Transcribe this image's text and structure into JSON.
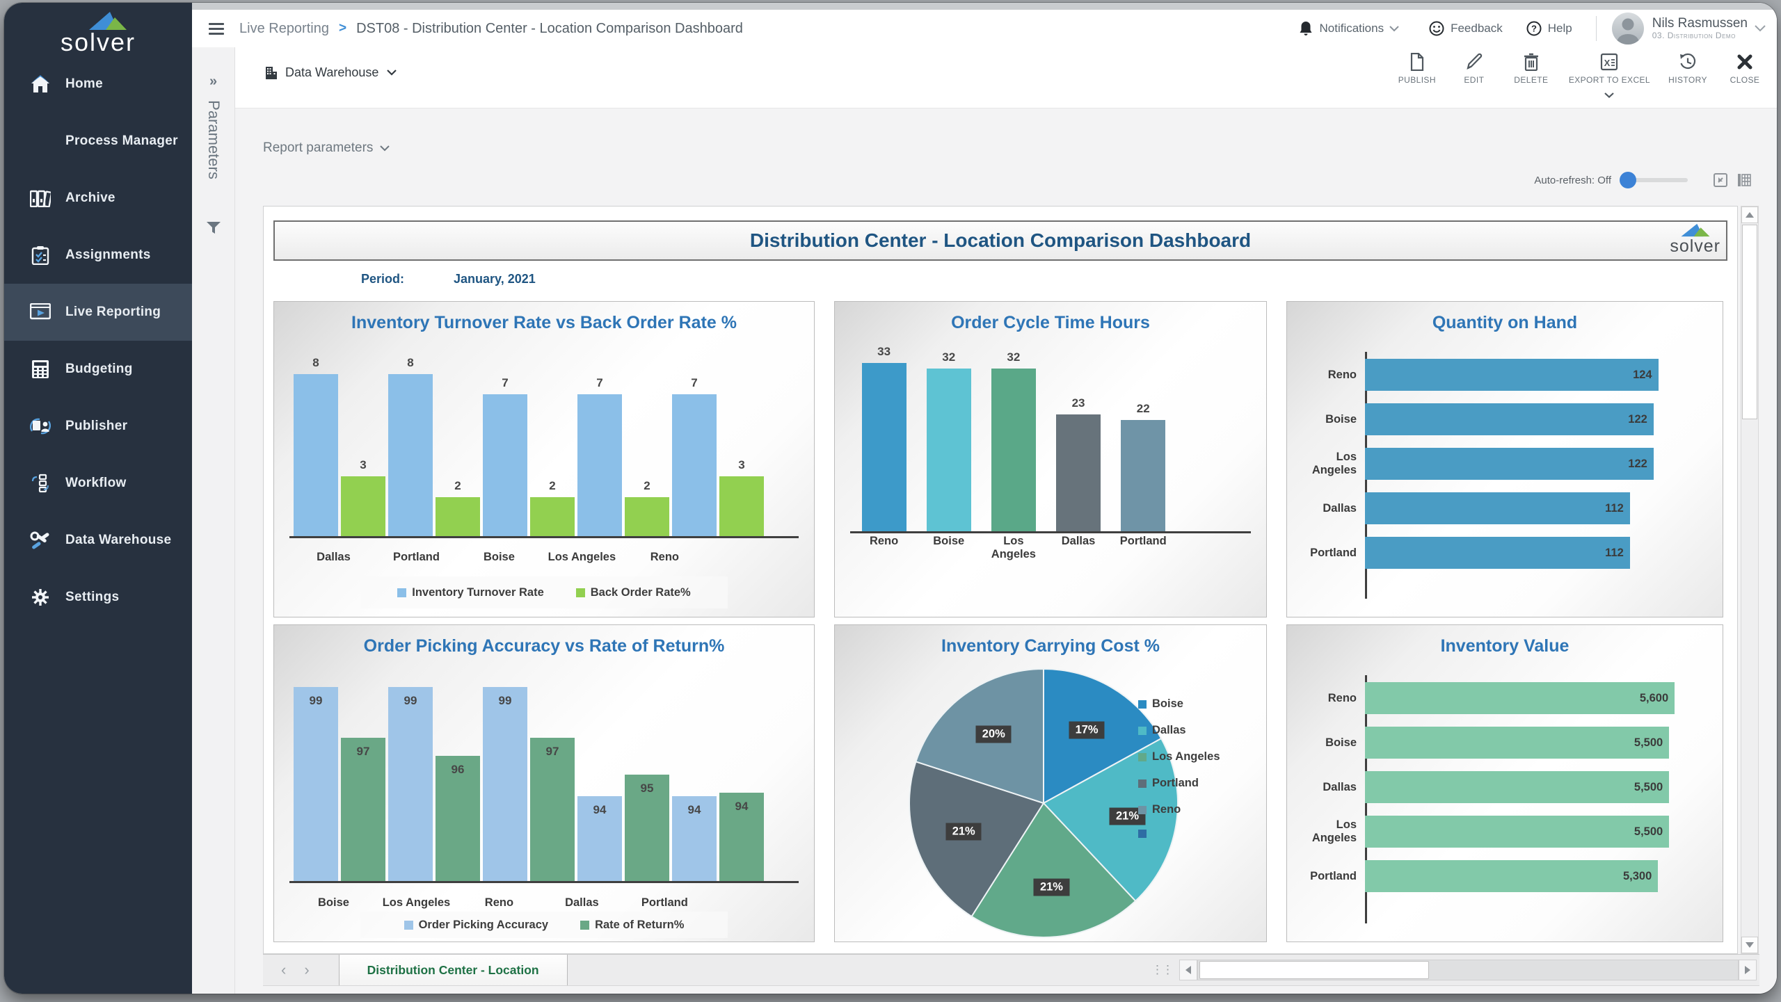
{
  "sidebar": {
    "logo_text": "solver",
    "items": [
      {
        "label": "Home",
        "active": false
      },
      {
        "label": "Process Manager",
        "active": false
      },
      {
        "label": "Archive",
        "active": false
      },
      {
        "label": "Assignments",
        "active": false
      },
      {
        "label": "Live Reporting",
        "active": true
      },
      {
        "label": "Budgeting",
        "active": false
      },
      {
        "label": "Publisher",
        "active": false
      },
      {
        "label": "Workflow",
        "active": false
      },
      {
        "label": "Data Warehouse",
        "active": false
      },
      {
        "label": "Settings",
        "active": false
      }
    ]
  },
  "params_rail": {
    "label": "Parameters",
    "expander": "»"
  },
  "header": {
    "breadcrumb_root": "Live Reporting",
    "breadcrumb_sep": ">",
    "breadcrumb_current": "DST08 - Distribution Center - Location Comparison Dashboard",
    "notifications_label": "Notifications",
    "feedback_label": "Feedback",
    "help_label": "Help",
    "user_name": "Nils Rasmussen",
    "user_context": "03. Distribution Demo"
  },
  "toolbar": {
    "source_label": "Data Warehouse",
    "buttons": [
      "PUBLISH",
      "EDIT",
      "DELETE",
      "EXPORT TO EXCEL",
      "HISTORY",
      "CLOSE"
    ]
  },
  "report_bar": {
    "report_parameters_label": "Report parameters",
    "auto_refresh_label": "Auto-refresh: Off"
  },
  "dashboard": {
    "title": "Distribution Center - Location Comparison Dashboard",
    "logo_text": "solver",
    "period_label": "Period:",
    "period_value": "January, 2021"
  },
  "sheet_tabs": {
    "active_tab": "Distribution Center - Location"
  },
  "colors": {
    "accent_blue": "#3c82d6",
    "sidebar_bg": "#27313f",
    "title_blue": "#1f5582",
    "chart_title_blue": "#2e75b6",
    "excel_tab_green": "#1e7145"
  },
  "chart_data": [
    {
      "id": "turnover_vs_backorder",
      "type": "bar",
      "title": "Inventory Turnover Rate vs Back Order Rate %",
      "categories": [
        "Dallas",
        "Portland",
        "Boise",
        "Los Angeles",
        "Reno"
      ],
      "series": [
        {
          "name": "Inventory Turnover Rate",
          "color": "#8bbfe8",
          "values": [
            8,
            8,
            7,
            7,
            7
          ],
          "ylim": [
            0,
            9
          ]
        },
        {
          "name": "Back Order Rate%",
          "color": "#92d050",
          "values": [
            3,
            2,
            2,
            2,
            3
          ],
          "ylim": [
            0,
            9
          ]
        }
      ],
      "legend": true,
      "legend_position": "bottom",
      "value_labels": "above",
      "grid": false
    },
    {
      "id": "order_cycle_time",
      "type": "bar",
      "title": "Order Cycle Time Hours",
      "categories": [
        "Reno",
        "Boise",
        "Los Angeles",
        "Dallas",
        "Portland"
      ],
      "series": [
        {
          "name": "Order Cycle Time Hours",
          "colors": [
            "#3d9ac9",
            "#5ec3d3",
            "#5aa888",
            "#67737b",
            "#6f94a7"
          ],
          "values": [
            33,
            32,
            32,
            23,
            22
          ],
          "ylim": [
            0,
            36
          ]
        }
      ],
      "legend": false,
      "value_labels": "above",
      "grid": false
    },
    {
      "id": "quantity_on_hand",
      "type": "hbar",
      "title": "Quantity on Hand",
      "categories": [
        "Reno",
        "Boise",
        "Los Angeles",
        "Dallas",
        "Portland"
      ],
      "values": [
        124,
        122,
        122,
        112,
        112
      ],
      "color": "#4a9cc4",
      "xlim": [
        0,
        130
      ],
      "value_labels": "inside-end",
      "grid": false
    },
    {
      "id": "picking_vs_returns",
      "type": "bar",
      "title": "Order Picking Accuracy vs Rate of Return%",
      "categories": [
        "Boise",
        "Los Angeles",
        "Reno",
        "Dallas",
        "Portland"
      ],
      "series": [
        {
          "name": "Order Picking Accuracy",
          "color": "#9fc5e8",
          "values": [
            99,
            99,
            99,
            94,
            94
          ],
          "ylim": [
            90,
            100
          ]
        },
        {
          "name": "Rate of Return%",
          "color": "#6aa886",
          "values": [
            97,
            96,
            97,
            95,
            94
          ],
          "ylim": [
            89,
            101
          ]
        }
      ],
      "legend": true,
      "legend_position": "bottom",
      "value_labels": "inside",
      "grid": false
    },
    {
      "id": "carrying_cost",
      "type": "pie",
      "title": "Inventory Carrying Cost %",
      "slices": [
        {
          "label": "Boise",
          "value": 17,
          "color": "#2b8bc2"
        },
        {
          "label": "Dallas",
          "value": 21,
          "color": "#4fbac6"
        },
        {
          "label": "Los Angeles",
          "value": 21,
          "color": "#61a98a"
        },
        {
          "label": "Portland",
          "value": 21,
          "color": "#5e6e79"
        },
        {
          "label": "Reno",
          "value": 20,
          "color": "#6e93a4"
        }
      ],
      "label_suffix": "%",
      "legend": true,
      "legend_position": "right",
      "legend_extra_color": "#2e6da4"
    },
    {
      "id": "inventory_value",
      "type": "hbar",
      "title": "Inventory Value",
      "categories": [
        "Reno",
        "Boise",
        "Dallas",
        "Los Angeles",
        "Portland"
      ],
      "values": [
        5600,
        5500,
        5500,
        5500,
        5300
      ],
      "color": "#82c9a9",
      "xlim": [
        0,
        5900
      ],
      "value_labels": "inside-end",
      "number_format": "thousands-comma",
      "grid": false
    }
  ]
}
